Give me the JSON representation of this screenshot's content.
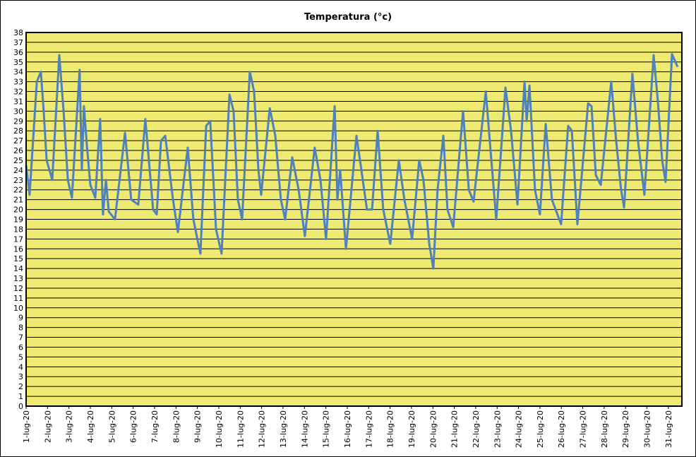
{
  "chart_data": {
    "type": "line",
    "title": "Temperatura (°c)",
    "x": [
      0,
      0.16,
      0.5,
      0.69,
      0.82,
      0.96,
      1.22,
      1.55,
      1.75,
      1.95,
      2.14,
      2.5,
      2.6,
      2.7,
      2.84,
      3.0,
      3.23,
      3.46,
      3.59,
      3.73,
      3.86,
      4.15,
      4.62,
      4.91,
      5.24,
      5.57,
      5.93,
      6.1,
      6.3,
      6.5,
      6.86,
      7.09,
      7.55,
      7.81,
      8.14,
      8.41,
      8.6,
      8.87,
      9.13,
      9.5,
      9.69,
      9.89,
      10.09,
      10.45,
      10.65,
      10.85,
      10.98,
      11.38,
      11.64,
      11.9,
      12.1,
      12.43,
      12.73,
      13.02,
      13.48,
      13.75,
      14.01,
      14.41,
      14.54,
      14.67,
      14.94,
      15.43,
      15.66,
      15.92,
      16.16,
      16.42,
      16.68,
      17.01,
      17.41,
      17.67,
      18.03,
      18.36,
      18.56,
      18.83,
      19.02,
      19.22,
      19.49,
      19.68,
      19.95,
      20.41,
      20.68,
      20.9,
      21.47,
      21.73,
      21.96,
      22.39,
      22.65,
      22.95,
      23.28,
      23.38,
      23.51,
      23.77,
      24,
      24.27,
      24.56,
      24.99,
      25.32,
      25.49,
      25.75,
      26.25,
      26.41,
      26.61,
      26.84,
      27.33,
      27.56,
      27.79,
      27.93,
      28.32,
      28.58,
      28.88,
      29.31,
      29.51,
      29.71,
      29.87,
      30.17,
      30.43
    ],
    "series": [
      {
        "color": "#4f81bd",
        "values": [
          24.5,
          21.5,
          33,
          34,
          30,
          25,
          23,
          35.7,
          30,
          23,
          21.2,
          34.2,
          24,
          30.5,
          26.5,
          22.5,
          21.2,
          29.2,
          19.5,
          23,
          19.8,
          19,
          27.8,
          21,
          20.5,
          29.2,
          20,
          19.5,
          27,
          27.5,
          21,
          17.7,
          26.3,
          19,
          15.5,
          28.5,
          29,
          18,
          15.5,
          31.7,
          30,
          21,
          19,
          34,
          32,
          24,
          21.5,
          30.3,
          27.5,
          21,
          19,
          25.3,
          22,
          17.3,
          26.3,
          23,
          17,
          30.5,
          21,
          24,
          16,
          27.5,
          24,
          20,
          20,
          28,
          20,
          16.5,
          25,
          21,
          17,
          25,
          23,
          16.5,
          14,
          22,
          27.5,
          20,
          18.2,
          30,
          22,
          20.8,
          32,
          25,
          19,
          32.4,
          28,
          20.5,
          33,
          29,
          32.6,
          22,
          19.5,
          28.7,
          21,
          18.5,
          28.5,
          28,
          18.5,
          30.8,
          30.5,
          23.5,
          22.5,
          33,
          27,
          22,
          20.2,
          33.8,
          27,
          21.5,
          35.7,
          31,
          25,
          22.8,
          35.8,
          34.5
        ]
      }
    ],
    "xlim": [
      0,
      30.63
    ],
    "xticks": [
      {
        "value": 0,
        "label": "1-lug-20"
      },
      {
        "value": 1,
        "label": "2-lug-20"
      },
      {
        "value": 2,
        "label": "3-lug-20"
      },
      {
        "value": 3,
        "label": "4-lug-20"
      },
      {
        "value": 4,
        "label": "5-lug-20"
      },
      {
        "value": 5,
        "label": "6-lug-20"
      },
      {
        "value": 6,
        "label": "7-lug-20"
      },
      {
        "value": 7,
        "label": "8-lug-20"
      },
      {
        "value": 8,
        "label": "9-lug-20"
      },
      {
        "value": 9,
        "label": "10-lug-20"
      },
      {
        "value": 10,
        "label": "11-lug-20"
      },
      {
        "value": 11,
        "label": "12-lug-20"
      },
      {
        "value": 12,
        "label": "13-lug-20"
      },
      {
        "value": 13,
        "label": "14-lug-20"
      },
      {
        "value": 14,
        "label": "15-lug-20"
      },
      {
        "value": 15,
        "label": "16-lug-20"
      },
      {
        "value": 16,
        "label": "17-lug-20"
      },
      {
        "value": 17,
        "label": "18-lug-20"
      },
      {
        "value": 18,
        "label": "19-lug-20"
      },
      {
        "value": 19,
        "label": "20-lug-20"
      },
      {
        "value": 20,
        "label": "21-lug-20"
      },
      {
        "value": 21,
        "label": "22-lug-20"
      },
      {
        "value": 22,
        "label": "23-lug-20"
      },
      {
        "value": 23,
        "label": "24-lug-20"
      },
      {
        "value": 24,
        "label": "25-lug-20"
      },
      {
        "value": 25,
        "label": "26-lug-20"
      },
      {
        "value": 26,
        "label": "27-lug-20"
      },
      {
        "value": 27,
        "label": "28-lug-20"
      },
      {
        "value": 28,
        "label": "29-lug-20"
      },
      {
        "value": 29,
        "label": "30-lug-20"
      },
      {
        "value": 30,
        "label": "31-lug-20"
      }
    ],
    "ylim": [
      0,
      38
    ],
    "yticks": [
      0,
      1,
      2,
      3,
      4,
      5,
      6,
      7,
      8,
      9,
      10,
      11,
      12,
      13,
      14,
      15,
      16,
      17,
      18,
      19,
      20,
      21,
      22,
      23,
      24,
      25,
      26,
      27,
      28,
      29,
      30,
      31,
      32,
      33,
      34,
      35,
      36,
      37,
      38
    ],
    "grid": true,
    "plot_background": "#eeea72"
  }
}
